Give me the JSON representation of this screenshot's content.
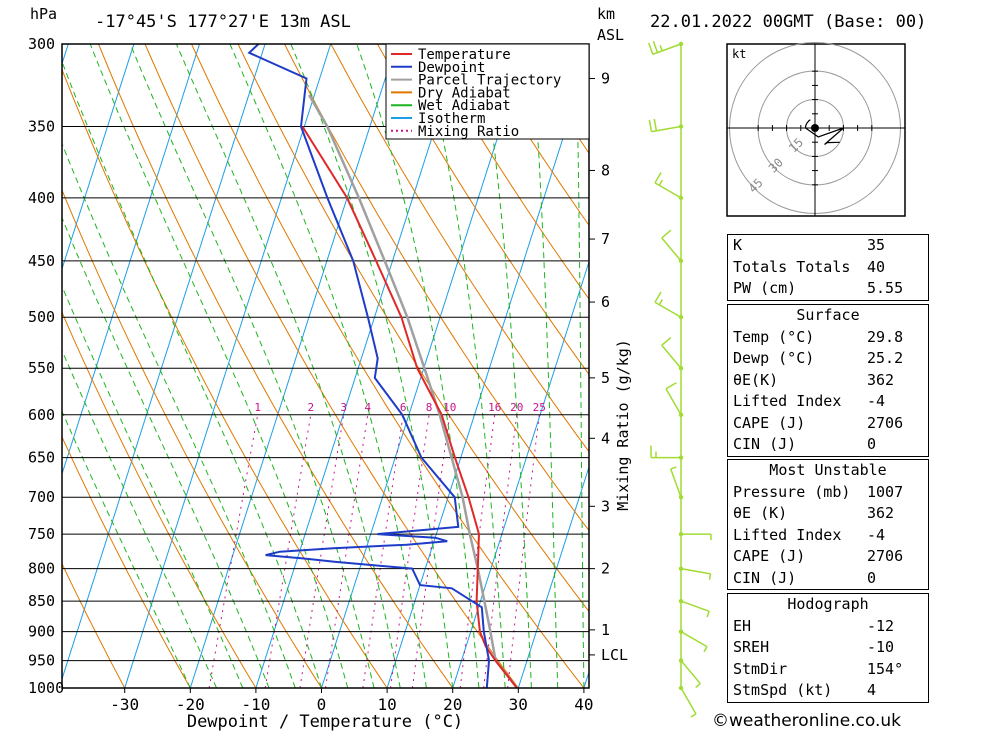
{
  "header": {
    "location": "-17°45'S 177°27'E 13m ASL",
    "datetime": "22.01.2022 00GMT (Base: 00)",
    "pressure_unit": "hPa",
    "height_unit_1": "km",
    "height_unit_2": "ASL"
  },
  "chart_data": {
    "type": "line",
    "title": "",
    "xlabel": "Dewpoint / Temperature (°C)",
    "ylabel": "hPa",
    "y2label": "Mixing Ratio (g/kg)",
    "xlim": [
      -40,
      40
    ],
    "ylim": [
      1000,
      300
    ],
    "y_log": true,
    "x_ticks": [
      "-30",
      "-20",
      "-10",
      "0",
      "10",
      "20",
      "30",
      "40"
    ],
    "pressure_ticks": [
      "300",
      "350",
      "400",
      "450",
      "500",
      "550",
      "600",
      "650",
      "700",
      "750",
      "800",
      "850",
      "900",
      "950",
      "1000"
    ],
    "height_ticks": [
      {
        "label": "9",
        "p": 320
      },
      {
        "label": "8",
        "p": 380
      },
      {
        "label": "7",
        "p": 432
      },
      {
        "label": "6",
        "p": 486
      },
      {
        "label": "5",
        "p": 560
      },
      {
        "label": "4",
        "p": 627
      },
      {
        "label": "3",
        "p": 712
      },
      {
        "label": "2",
        "p": 800
      },
      {
        "label": "1",
        "p": 897
      },
      {
        "label": "LCL",
        "p": 940
      }
    ],
    "mixing_ratio_labels": [
      "1",
      "2",
      "3",
      "4",
      "6",
      "8",
      "10",
      "16",
      "20",
      "25"
    ],
    "legend": {
      "placement": "top-right",
      "entries": [
        "Temperature",
        "Dewpoint",
        "Parcel Trajectory",
        "Dry Adiabat",
        "Wet Adiabat",
        "Isotherm",
        "Mixing Ratio"
      ]
    },
    "colors": {
      "temperature": "#e02828",
      "dewpoint": "#1e3cc8",
      "parcel": "#a0a0a0",
      "dry_adiabat": "#e07800",
      "wet_adiabat": "#1eb41e",
      "isotherm": "#1e9ee6",
      "mixing_ratio": "#c8148c",
      "wind": "#a0dc32"
    },
    "series": [
      {
        "name": "Temperature",
        "points": [
          [
            1000,
            29.8
          ],
          [
            950,
            25.2
          ],
          [
            925,
            23.0
          ],
          [
            900,
            21.4
          ],
          [
            850,
            19.4
          ],
          [
            800,
            18.0
          ],
          [
            760,
            16.8
          ],
          [
            750,
            16.5
          ],
          [
            700,
            13.1
          ],
          [
            650,
            9.1
          ],
          [
            600,
            5.0
          ],
          [
            550,
            -1.0
          ],
          [
            500,
            -5.9
          ],
          [
            450,
            -12.5
          ],
          [
            400,
            -20.0
          ],
          [
            350,
            -30.3
          ]
        ]
      },
      {
        "name": "Dewpoint",
        "points": [
          [
            1000,
            25.2
          ],
          [
            950,
            24.2
          ],
          [
            900,
            22.0
          ],
          [
            860,
            20.5
          ],
          [
            830,
            15.0
          ],
          [
            825,
            10.0
          ],
          [
            800,
            8.0
          ],
          [
            795,
            2.0
          ],
          [
            790,
            -4.0
          ],
          [
            785,
            -9.0
          ],
          [
            780,
            -15.0
          ],
          [
            775,
            -13.0
          ],
          [
            770,
            -5.0
          ],
          [
            765,
            6.0
          ],
          [
            760,
            12.0
          ],
          [
            755,
            10.0
          ],
          [
            750,
            1.0
          ],
          [
            745,
            7.0
          ],
          [
            740,
            13.0
          ],
          [
            700,
            11.0
          ],
          [
            650,
            4.0
          ],
          [
            600,
            -1.0
          ],
          [
            560,
            -7.0
          ],
          [
            540,
            -7.5
          ],
          [
            500,
            -11.0
          ],
          [
            450,
            -16.0
          ],
          [
            400,
            -23.0
          ],
          [
            350,
            -30.5
          ],
          [
            330,
            -31.5
          ],
          [
            320,
            -32.0
          ],
          [
            305,
            -42.0
          ],
          [
            300,
            -41.0
          ]
        ]
      },
      {
        "name": "Parcel Trajectory",
        "points": [
          [
            1000,
            29.8
          ],
          [
            950,
            25.2
          ],
          [
            900,
            23.0
          ],
          [
            850,
            20.6
          ],
          [
            800,
            18.0
          ],
          [
            750,
            15.1
          ],
          [
            700,
            12.2
          ],
          [
            650,
            8.6
          ],
          [
            600,
            4.7
          ],
          [
            550,
            0.1
          ],
          [
            500,
            -5.0
          ],
          [
            450,
            -11.2
          ],
          [
            400,
            -18.2
          ],
          [
            350,
            -26.5
          ],
          [
            330,
            -30.8
          ]
        ]
      }
    ],
    "indices": {
      "k_label": "K",
      "k": "35",
      "tt_label": "Totals Totals",
      "tt": "40",
      "pw_label": "PW (cm)",
      "pw": "5.55"
    },
    "surface": {
      "title": "Surface",
      "temp_label": "Temp (°C)",
      "temp": "29.8",
      "dewp_label": "Dewp (°C)",
      "dewp": "25.2",
      "theta_label": "θE(K)",
      "theta": "362",
      "li_label": "Lifted Index",
      "li": "-4",
      "cape_label": "CAPE (J)",
      "cape": "2706",
      "cin_label": "CIN (J)",
      "cin": "0"
    },
    "most_unstable": {
      "title": "Most Unstable",
      "pressure_label": "Pressure (mb)",
      "pressure": "1007",
      "theta_label": "θE (K)",
      "theta": "362",
      "li_label": "Lifted Index",
      "li": "-4",
      "cape_label": "CAPE (J)",
      "cape": "2706",
      "cin_label": "CIN (J)",
      "cin": "0"
    },
    "hodograph": {
      "title": "Hodograph",
      "unit": "kt",
      "rings": [
        "15",
        "30",
        "45"
      ],
      "eh_label": "EH",
      "eh": "-12",
      "sreh_label": "SREH",
      "sreh": "-10",
      "stmdir_label": "StmDir",
      "stmdir": "154°",
      "stmspd_label": "StmSpd (kt)",
      "stmspd": "4"
    },
    "wind_barbs": [
      {
        "p": 1000,
        "dir": 150,
        "spd": 5
      },
      {
        "p": 950,
        "dir": 140,
        "spd": 5
      },
      {
        "p": 900,
        "dir": 120,
        "spd": 5
      },
      {
        "p": 850,
        "dir": 110,
        "spd": 5
      },
      {
        "p": 800,
        "dir": 100,
        "spd": 5
      },
      {
        "p": 750,
        "dir": 90,
        "spd": 5
      },
      {
        "p": 700,
        "dir": 340,
        "spd": 5
      },
      {
        "p": 650,
        "dir": 270,
        "spd": 15
      },
      {
        "p": 600,
        "dir": 330,
        "spd": 10
      },
      {
        "p": 550,
        "dir": 320,
        "spd": 10
      },
      {
        "p": 500,
        "dir": 300,
        "spd": 15
      },
      {
        "p": 450,
        "dir": 320,
        "spd": 10
      },
      {
        "p": 400,
        "dir": 300,
        "spd": 15
      },
      {
        "p": 350,
        "dir": 260,
        "spd": 20
      },
      {
        "p": 300,
        "dir": 250,
        "spd": 25
      }
    ]
  },
  "copyright": "©weatheronline.co.uk"
}
